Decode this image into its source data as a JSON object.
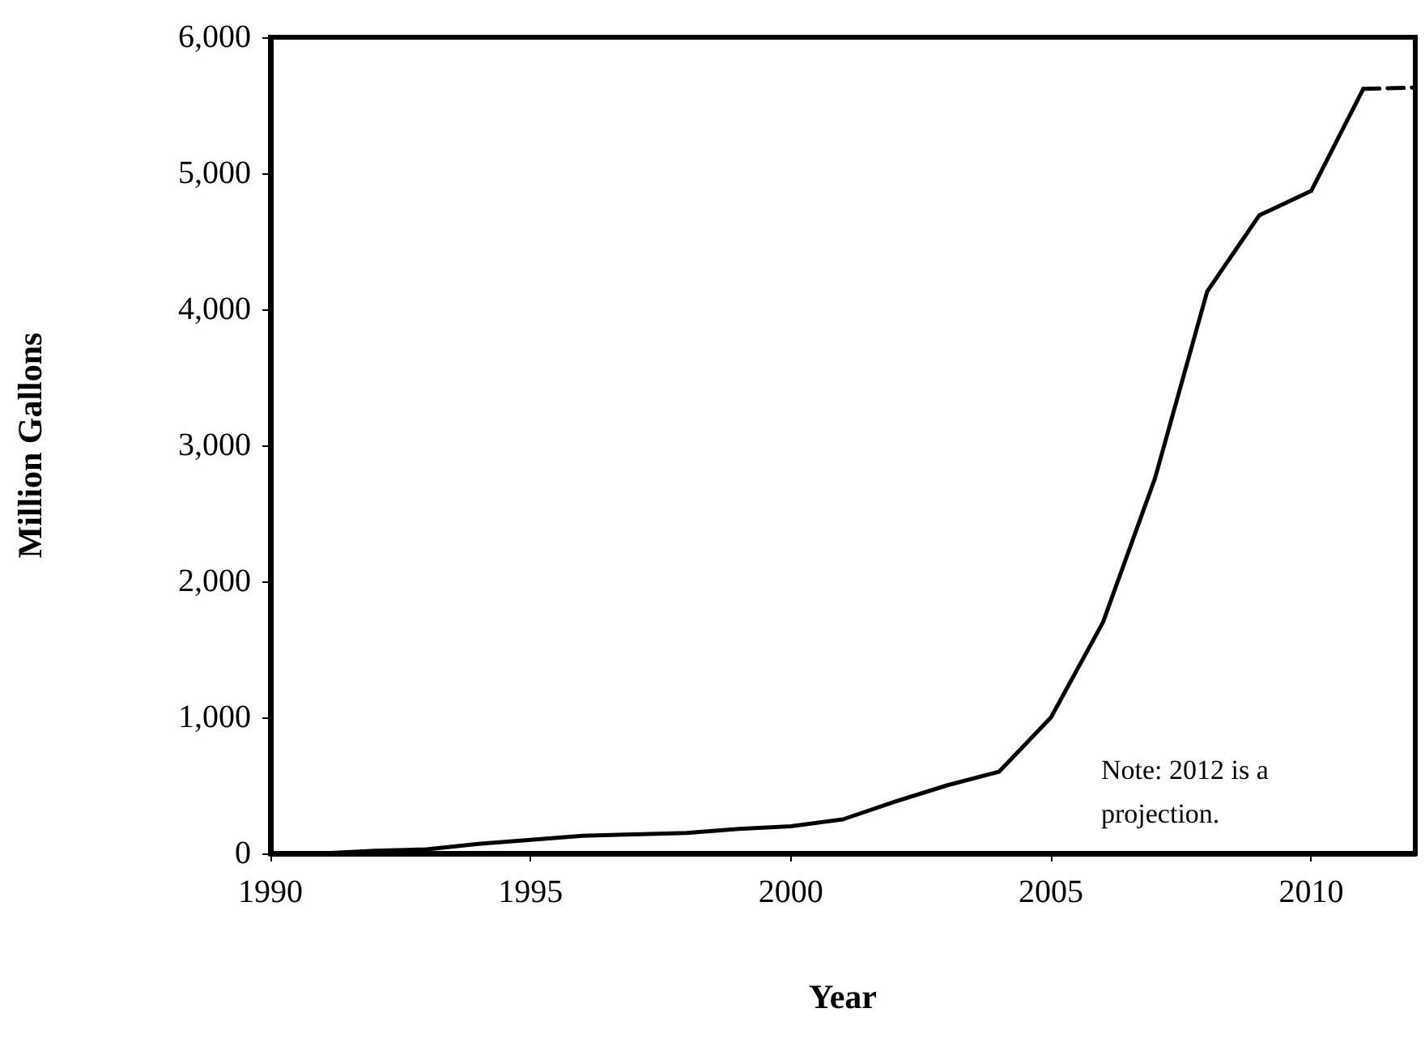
{
  "chart_data": {
    "type": "line",
    "xlabel": "Year",
    "ylabel": "Million Gallons",
    "xlim": [
      1990,
      2012
    ],
    "xticks": [
      1990,
      1995,
      2000,
      2005,
      2010
    ],
    "ylim": [
      0,
      6000
    ],
    "yticks": [
      {
        "value": 0,
        "label": "0"
      },
      {
        "value": 1000,
        "label": "1,000"
      },
      {
        "value": 2000,
        "label": "2,000"
      },
      {
        "value": 3000,
        "label": "3,000"
      },
      {
        "value": 4000,
        "label": "4,000"
      },
      {
        "value": 5000,
        "label": "5,000"
      },
      {
        "value": 6000,
        "label": "6,000"
      }
    ],
    "grid": false,
    "marker": "none",
    "series": [
      {
        "color": "#000000",
        "line_style": "solid",
        "x": [
          1990,
          1991,
          1992,
          1993,
          1994,
          1995,
          1996,
          1997,
          1998,
          1999,
          2000,
          2001,
          2002,
          2003,
          2004,
          2005,
          2006,
          2007,
          2008,
          2009,
          2010,
          2011
        ],
        "values": [
          0,
          0,
          20,
          30,
          70,
          100,
          130,
          140,
          150,
          180,
          200,
          250,
          380,
          500,
          600,
          1000,
          1700,
          2760,
          4130,
          4690,
          4870,
          5620
        ]
      },
      {
        "color": "#000000",
        "line_style": "dashed",
        "x": [
          2011,
          2012
        ],
        "values": [
          5620,
          5630
        ]
      }
    ],
    "annotations": [
      "Note: 2012 is a projection."
    ]
  }
}
